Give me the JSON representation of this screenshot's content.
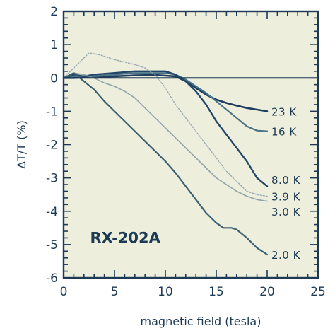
{
  "chart_data": {
    "type": "line",
    "title": "",
    "xlabel": "magnetic field (tesla)",
    "ylabel": "ΔT/T (%)",
    "xlim": [
      0,
      25
    ],
    "ylim": [
      -6,
      2
    ],
    "x_ticks": [
      0,
      5,
      10,
      15,
      20,
      25
    ],
    "y_ticks": [
      2,
      1,
      0,
      -1,
      -2,
      -3,
      -4,
      -5,
      -6
    ],
    "grid": false,
    "annotation": "RX-202A",
    "colors": {
      "background": "#eeeedd",
      "axis": "#1d3a55",
      "zero_line": "#1d3a55"
    },
    "series": [
      {
        "name": "23 K",
        "color": "#1e3d5e",
        "width": 2.6,
        "opacity": 1,
        "points": [
          [
            0,
            0
          ],
          [
            1,
            0
          ],
          [
            2,
            0.02
          ],
          [
            3,
            0.03
          ],
          [
            5,
            0.05
          ],
          [
            7,
            0.08
          ],
          [
            9,
            0.09
          ],
          [
            11,
            0.05
          ],
          [
            12,
            -0.1
          ],
          [
            13,
            -0.3
          ],
          [
            14,
            -0.5
          ],
          [
            15,
            -0.65
          ],
          [
            16,
            -0.75
          ],
          [
            17,
            -0.83
          ],
          [
            18,
            -0.9
          ],
          [
            19,
            -0.95
          ],
          [
            20,
            -1.0
          ]
        ]
      },
      {
        "name": "16 K",
        "color": "#4a7488",
        "width": 2.2,
        "opacity": 1,
        "points": [
          [
            0,
            0
          ],
          [
            1,
            0.05
          ],
          [
            2,
            0.05
          ],
          [
            3,
            0.05
          ],
          [
            5,
            0.1
          ],
          [
            7,
            0.15
          ],
          [
            9,
            0.15
          ],
          [
            10,
            0.15
          ],
          [
            11,
            0.1
          ],
          [
            12,
            -0.05
          ],
          [
            13,
            -0.25
          ],
          [
            14,
            -0.45
          ],
          [
            15,
            -0.7
          ],
          [
            16,
            -0.95
          ],
          [
            17,
            -1.2
          ],
          [
            18,
            -1.45
          ],
          [
            19,
            -1.58
          ],
          [
            20,
            -1.6
          ]
        ]
      },
      {
        "name": "8.0 K",
        "color": "#23476a",
        "width": 2.4,
        "opacity": 1,
        "points": [
          [
            0,
            0
          ],
          [
            1,
            0.1
          ],
          [
            2,
            0.05
          ],
          [
            3,
            0.1
          ],
          [
            5,
            0.15
          ],
          [
            7,
            0.2
          ],
          [
            9,
            0.2
          ],
          [
            10,
            0.2
          ],
          [
            11,
            0.1
          ],
          [
            12,
            -0.1
          ],
          [
            13,
            -0.4
          ],
          [
            14,
            -0.8
          ],
          [
            15,
            -1.3
          ],
          [
            16,
            -1.7
          ],
          [
            17,
            -2.1
          ],
          [
            18,
            -2.5
          ],
          [
            19,
            -3.0
          ],
          [
            20,
            -3.25
          ]
        ]
      },
      {
        "name": "3.9 K",
        "color": "#8fa3ad",
        "width": 1.4,
        "opacity": 0.9,
        "dashed": true,
        "points": [
          [
            0,
            0
          ],
          [
            1,
            0.3
          ],
          [
            2,
            0.6
          ],
          [
            2.5,
            0.75
          ],
          [
            3.5,
            0.7
          ],
          [
            5,
            0.55
          ],
          [
            7,
            0.4
          ],
          [
            8,
            0.3
          ],
          [
            9,
            0.1
          ],
          [
            10,
            -0.3
          ],
          [
            11,
            -0.8
          ],
          [
            12,
            -1.2
          ],
          [
            13,
            -1.6
          ],
          [
            14,
            -2.0
          ],
          [
            15,
            -2.4
          ],
          [
            16,
            -2.8
          ],
          [
            17,
            -3.1
          ],
          [
            18,
            -3.4
          ],
          [
            19,
            -3.5
          ],
          [
            20,
            -3.55
          ]
        ]
      },
      {
        "name": "3.0 K",
        "color": "#7f959f",
        "width": 1.6,
        "opacity": 0.85,
        "points": [
          [
            0,
            0
          ],
          [
            1,
            0.15
          ],
          [
            2,
            0.1
          ],
          [
            3,
            0
          ],
          [
            4,
            -0.15
          ],
          [
            5,
            -0.25
          ],
          [
            6,
            -0.4
          ],
          [
            7,
            -0.6
          ],
          [
            8,
            -0.9
          ],
          [
            9,
            -1.2
          ],
          [
            10,
            -1.5
          ],
          [
            11,
            -1.8
          ],
          [
            12,
            -2.1
          ],
          [
            13,
            -2.4
          ],
          [
            14,
            -2.7
          ],
          [
            15,
            -3.0
          ],
          [
            16,
            -3.2
          ],
          [
            17,
            -3.4
          ],
          [
            18,
            -3.55
          ],
          [
            19,
            -3.65
          ],
          [
            20,
            -3.7
          ]
        ]
      },
      {
        "name": "2.0 K",
        "color": "#3a6073",
        "width": 2.2,
        "opacity": 1,
        "points": [
          [
            0,
            0
          ],
          [
            1,
            0.15
          ],
          [
            2,
            -0.1
          ],
          [
            3,
            -0.35
          ],
          [
            4,
            -0.7
          ],
          [
            5,
            -1.0
          ],
          [
            6,
            -1.3
          ],
          [
            7,
            -1.6
          ],
          [
            8,
            -1.9
          ],
          [
            9,
            -2.2
          ],
          [
            10,
            -2.5
          ],
          [
            11,
            -2.85
          ],
          [
            12,
            -3.25
          ],
          [
            13,
            -3.65
          ],
          [
            14,
            -4.05
          ],
          [
            15,
            -4.35
          ],
          [
            15.7,
            -4.5
          ],
          [
            16.5,
            -4.5
          ],
          [
            17,
            -4.55
          ],
          [
            18,
            -4.8
          ],
          [
            19,
            -5.1
          ],
          [
            20,
            -5.3
          ]
        ]
      }
    ]
  }
}
